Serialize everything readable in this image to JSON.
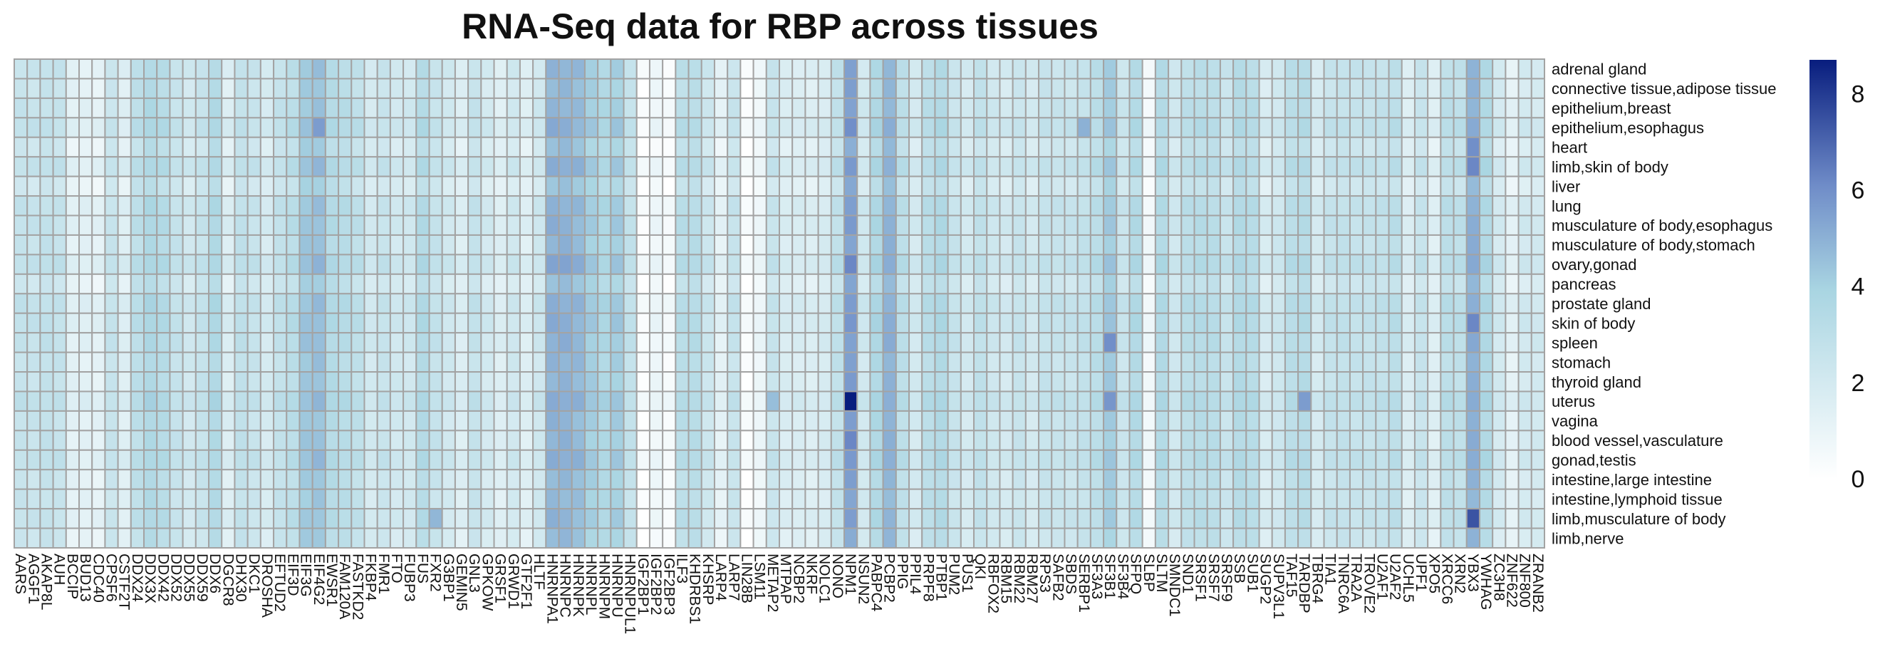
{
  "chart_data": {
    "type": "heatmap",
    "title": "RNA-Seq data for RBP across tissues",
    "rows": [
      "adrenal gland",
      "connective tissue,adipose tissue",
      "epithelium,breast",
      "epithelium,esophagus",
      "heart",
      "limb,skin of body",
      "liver",
      "lung",
      "musculature of body,esophagus",
      "musculature of body,stomach",
      "ovary,gonad",
      "pancreas",
      "prostate gland",
      "skin of body",
      "spleen",
      "stomach",
      "thyroid gland",
      "uterus",
      "vagina",
      "blood vessel,vasculature",
      "gonad,testis",
      "intestine,large intestine",
      "intestine,lymphoid tissue",
      "limb,musculature of body",
      "limb,nerve"
    ],
    "columns": [
      "AARS",
      "AGGF1",
      "AKAP8L",
      "AUH",
      "BCCIP",
      "BUD13",
      "CDC40",
      "CPSF6",
      "CSTF2T",
      "DDX24",
      "DDX3X",
      "DDX42",
      "DDX52",
      "DDX55",
      "DDX59",
      "DDX6",
      "DGCR8",
      "DHX30",
      "DKC1",
      "DROSHA",
      "EFTUD2",
      "EIF3D",
      "EIF3G",
      "EIF4G2",
      "EWSR1",
      "FAM120A",
      "FASTKD2",
      "FKBP4",
      "FMR1",
      "FTO",
      "FUBP3",
      "FUS",
      "FXR2",
      "G3BP1",
      "GEMIN5",
      "GNL3",
      "GPKOW",
      "GRSF1",
      "GRWD1",
      "GTF2F1",
      "HLTF",
      "HNRNPA1",
      "HNRNPC",
      "HNRNPK",
      "HNRNPL",
      "HNRNPM",
      "HNRNPU",
      "HNRNPUL1",
      "IGF2BP1",
      "IGF2BP2",
      "IGF2BP3",
      "ILF3",
      "KHDRBS1",
      "KHSRP",
      "LARP4",
      "LARP7",
      "LIN28B",
      "LSM11",
      "METAP2",
      "MTPAP",
      "NCBP2",
      "NKRF",
      "NOLC1",
      "NONO",
      "NPM1",
      "NSUN2",
      "PABPC4",
      "PCBP2",
      "PPIG",
      "PPIL4",
      "PRPF8",
      "PTBP1",
      "PUM2",
      "PUS1",
      "QKI",
      "RBFOX2",
      "RBM15",
      "RBM22",
      "RBM27",
      "RPS3",
      "SAFB2",
      "SBDS",
      "SERBP1",
      "SF3A3",
      "SF3B1",
      "SF3B4",
      "SFPQ",
      "SLBP",
      "SLTM",
      "SMNDC1",
      "SND1",
      "SRSF1",
      "SRSF7",
      "SRSF9",
      "SSB",
      "SUB1",
      "SUGP2",
      "SUPV3L1",
      "TAF15",
      "TARDBP",
      "TBRG4",
      "TIA1",
      "TNRC6A",
      "TRA2A",
      "TROVE2",
      "U2AF1",
      "U2AF2",
      "UCHL5",
      "UPF1",
      "XPO5",
      "XRCC6",
      "XRN2",
      "YBX3",
      "YWHAG",
      "ZC3H8",
      "ZNF622",
      "ZNF800",
      "ZRANB2"
    ],
    "col_base": [
      2.6,
      2.5,
      2.7,
      2.6,
      1.3,
      1.3,
      1.2,
      2.5,
      1.5,
      3.0,
      3.6,
      3.3,
      2.6,
      2.1,
      2.6,
      3.5,
      1.6,
      2.8,
      2.5,
      1.9,
      2.7,
      3.1,
      4.3,
      4.5,
      3.4,
      3.2,
      2.9,
      2.0,
      2.5,
      2.1,
      2.1,
      3.4,
      2.6,
      2.1,
      1.6,
      2.6,
      2.0,
      1.5,
      2.1,
      1.5,
      2.2,
      4.9,
      4.9,
      4.7,
      4.1,
      3.6,
      4.1,
      2.7,
      0.2,
      0.8,
      0.4,
      3.1,
      3.2,
      2.3,
      1.2,
      2.5,
      0.2,
      0.8,
      2.5,
      1.7,
      1.7,
      1.6,
      1.8,
      2.8,
      5.5,
      2.1,
      3.6,
      4.9,
      3.0,
      2.0,
      3.1,
      3.5,
      2.5,
      2.0,
      2.8,
      2.2,
      2.0,
      2.5,
      2.0,
      2.6,
      2.5,
      2.5,
      2.7,
      3.1,
      4.2,
      2.4,
      3.4,
      0.6,
      3.4,
      2.2,
      3.0,
      3.2,
      3.1,
      2.5,
      3.4,
      3.2,
      1.8,
      2.2,
      3.1,
      3.3,
      1.9,
      2.6,
      2.7,
      2.6,
      2.6,
      2.7,
      3.0,
      1.6,
      2.5,
      1.5,
      3.0,
      2.9,
      5.0,
      3.5,
      2.0,
      1.2,
      2.0,
      2.0
    ],
    "row_offset": [
      0.0,
      -0.1,
      0.0,
      0.2,
      -0.3,
      0.2,
      -0.4,
      0.1,
      0.1,
      0.0,
      0.3,
      -0.3,
      0.2,
      0.2,
      0.1,
      0.0,
      0.0,
      0.3,
      0.0,
      0.0,
      0.2,
      -0.1,
      -0.1,
      0.0,
      -0.2
    ],
    "highlights": [
      {
        "row": "uterus",
        "column": "NPM1",
        "value": 8.7
      },
      {
        "row": "limb,musculature of body",
        "column": "YBX3",
        "value": 7.4
      },
      {
        "row": "ovary,gonad",
        "column": "NPM1",
        "value": 6.2
      },
      {
        "row": "epithelium,esophagus",
        "column": "NPM1",
        "value": 6.0
      },
      {
        "row": "blood vessel,vasculature",
        "column": "NPM1",
        "value": 6.2
      },
      {
        "row": "skin of body",
        "column": "YBX3",
        "value": 6.2
      },
      {
        "row": "limb,skin of body",
        "column": "YBX3",
        "value": 6.2
      },
      {
        "row": "heart",
        "column": "YBX3",
        "value": 6.0
      },
      {
        "row": "spleen",
        "column": "SF3B1",
        "value": 6.0
      },
      {
        "row": "uterus",
        "column": "SF3B1",
        "value": 5.8
      },
      {
        "row": "uterus",
        "column": "TARDBP",
        "value": 5.6
      },
      {
        "row": "epithelium,esophagus",
        "column": "EIF4G2",
        "value": 5.6
      },
      {
        "row": "ovary,gonad",
        "column": "HNRNPA1",
        "value": 5.4
      },
      {
        "row": "ovary,gonad",
        "column": "HNRNPC",
        "value": 5.4
      },
      {
        "row": "limb,musculature of body",
        "column": "FXR2",
        "value": 4.8
      },
      {
        "row": "uterus",
        "column": "METAP2",
        "value": 4.6
      },
      {
        "row": "epithelium,esophagus",
        "column": "SERBP1",
        "value": 5.0
      }
    ],
    "colorbar": {
      "min": 0,
      "max": 8.7,
      "ticks": [
        0,
        2,
        4,
        6,
        8
      ]
    },
    "colors": {
      "low": "#ffffff",
      "mid": "#a9d5e2",
      "high1": "#6f8cc8",
      "high": "#081d7e",
      "grid": "#a3a3a3"
    }
  }
}
